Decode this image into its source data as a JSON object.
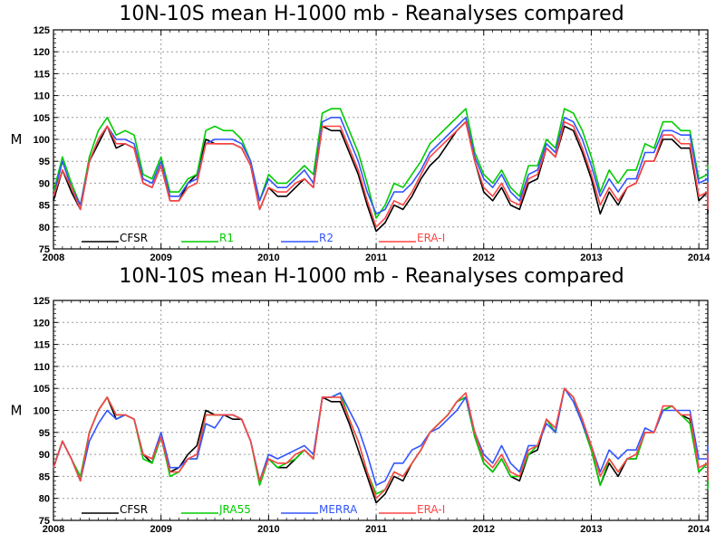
{
  "chart_data": [
    {
      "type": "line",
      "title": "10N-10S mean H-1000 mb - Reanalyses compared",
      "ylabel": "M",
      "ylim": [
        75,
        125
      ],
      "yticks": [
        75,
        80,
        85,
        90,
        95,
        100,
        105,
        110,
        115,
        120,
        125
      ],
      "xlim": [
        2008,
        2014.083
      ],
      "xticks": [
        "2008",
        "2009",
        "2010",
        "2011",
        "2012",
        "2013",
        "2014"
      ],
      "grid": true,
      "legend_position": "bottom",
      "x_start": 2008.0,
      "x_step_months": 1,
      "series": [
        {
          "name": "CFSR",
          "color": "#000000",
          "values": [
            86,
            93,
            88,
            84,
            95,
            99,
            103,
            98,
            99,
            98,
            90,
            89,
            94,
            86,
            86,
            90,
            92,
            100,
            99,
            99,
            99,
            98,
            94,
            84,
            89,
            87,
            87,
            89,
            91,
            89,
            103,
            102,
            102,
            97,
            92,
            85,
            79,
            81,
            85,
            84,
            87,
            91,
            94,
            96,
            99,
            102,
            104,
            95,
            88,
            86,
            89,
            85,
            84,
            90,
            91,
            98,
            96,
            103,
            102,
            97,
            91,
            83,
            88,
            85,
            89,
            90,
            95,
            95,
            100,
            100,
            98,
            98,
            86,
            88,
            89,
            83
          ]
        },
        {
          "name": "R1",
          "color": "#00cc00",
          "values": [
            88,
            96,
            90,
            85,
            96,
            102,
            105,
            101,
            102,
            101,
            92,
            91,
            96,
            88,
            88,
            91,
            92,
            102,
            103,
            102,
            102,
            100,
            95,
            86,
            92,
            90,
            90,
            92,
            94,
            92,
            106,
            107,
            107,
            102,
            97,
            90,
            82,
            85,
            90,
            89,
            92,
            95,
            99,
            101,
            103,
            105,
            107,
            97,
            92,
            90,
            93,
            89,
            87,
            94,
            94,
            100,
            98,
            107,
            106,
            102,
            96,
            88,
            93,
            90,
            93,
            93,
            99,
            98,
            104,
            104,
            102,
            102,
            91,
            92,
            94,
            86
          ]
        },
        {
          "name": "R2",
          "color": "#3355ff",
          "values": [
            87,
            95,
            89,
            85,
            95,
            100,
            103,
            100,
            100,
            99,
            91,
            90,
            95,
            87,
            87,
            90,
            91,
            99,
            100,
            100,
            100,
            99,
            95,
            86,
            91,
            89,
            89,
            91,
            93,
            90,
            104,
            105,
            105,
            100,
            95,
            88,
            83,
            84,
            88,
            88,
            90,
            93,
            97,
            99,
            101,
            103,
            105,
            96,
            91,
            89,
            92,
            88,
            86,
            92,
            93,
            99,
            97,
            105,
            104,
            100,
            94,
            87,
            91,
            88,
            91,
            91,
            97,
            97,
            102,
            102,
            101,
            101,
            90,
            91,
            93,
            85
          ]
        },
        {
          "name": "ERA-I",
          "color": "#ff4444",
          "values": [
            87,
            93,
            89,
            84,
            95,
            100,
            103,
            99,
            99,
            98,
            90,
            89,
            94,
            86,
            86,
            89,
            90,
            99,
            99,
            99,
            99,
            98,
            94,
            84,
            89,
            88,
            88,
            90,
            91,
            89,
            103,
            103,
            103,
            98,
            93,
            86,
            80,
            82,
            86,
            85,
            88,
            92,
            96,
            98,
            100,
            102,
            104,
            95,
            89,
            87,
            90,
            86,
            85,
            91,
            92,
            98,
            96,
            104,
            103,
            98,
            92,
            85,
            89,
            86,
            89,
            90,
            95,
            95,
            101,
            101,
            99,
            99,
            87,
            88,
            90,
            84
          ]
        }
      ]
    },
    {
      "type": "line",
      "title": "10N-10S mean H-1000 mb - Reanalyses compared",
      "ylabel": "M",
      "ylim": [
        75,
        125
      ],
      "yticks": [
        75,
        80,
        85,
        90,
        95,
        100,
        105,
        110,
        115,
        120,
        125
      ],
      "xlim": [
        2008,
        2014.083
      ],
      "xticks": [
        "2008",
        "2009",
        "2010",
        "2011",
        "2012",
        "2013",
        "2014"
      ],
      "grid": true,
      "legend_position": "bottom",
      "x_start": 2008.0,
      "x_step_months": 1,
      "series": [
        {
          "name": "CFSR",
          "color": "#000000",
          "values": [
            87,
            93,
            89,
            84,
            95,
            100,
            103,
            98,
            99,
            98,
            90,
            88,
            94,
            86,
            87,
            90,
            92,
            100,
            99,
            99,
            98,
            98,
            93,
            84,
            89,
            87,
            87,
            89,
            91,
            89,
            103,
            102,
            102,
            97,
            91,
            85,
            79,
            81,
            85,
            84,
            88,
            91,
            95,
            97,
            99,
            102,
            103,
            94,
            88,
            86,
            89,
            85,
            84,
            90,
            91,
            98,
            95,
            105,
            103,
            97,
            91,
            83,
            88,
            85,
            89,
            89,
            95,
            95,
            100,
            101,
            99,
            98,
            86,
            88,
            89,
            83
          ]
        },
        {
          "name": "JRA55",
          "color": "#00cc00",
          "values": [
            87,
            93,
            89,
            85,
            95,
            100,
            103,
            99,
            99,
            98,
            89,
            88,
            94,
            85,
            86,
            89,
            89,
            99,
            99,
            99,
            99,
            98,
            93,
            83,
            89,
            87,
            88,
            89,
            91,
            89,
            103,
            103,
            104,
            98,
            93,
            86,
            81,
            82,
            86,
            85,
            88,
            91,
            95,
            97,
            99,
            102,
            103,
            94,
            88,
            86,
            89,
            85,
            85,
            90,
            92,
            98,
            95,
            105,
            103,
            97,
            91,
            83,
            89,
            86,
            89,
            89,
            95,
            95,
            100,
            101,
            99,
            97,
            86,
            88,
            89,
            82
          ]
        },
        {
          "name": "MERRA",
          "color": "#3355ff",
          "values": [
            87,
            93,
            89,
            84,
            93,
            97,
            100,
            98,
            99,
            98,
            90,
            89,
            95,
            87,
            87,
            89,
            89,
            97,
            96,
            99,
            99,
            98,
            93,
            84,
            90,
            89,
            90,
            91,
            92,
            90,
            103,
            103,
            104,
            100,
            96,
            90,
            83,
            84,
            88,
            88,
            91,
            92,
            95,
            96,
            98,
            100,
            103,
            95,
            90,
            88,
            92,
            88,
            86,
            92,
            92,
            97,
            95,
            105,
            102,
            97,
            92,
            86,
            91,
            89,
            91,
            91,
            96,
            95,
            100,
            100,
            100,
            100,
            89,
            89,
            92,
            85
          ]
        },
        {
          "name": "ERA-I",
          "color": "#ff4444",
          "values": [
            87,
            93,
            89,
            84,
            95,
            100,
            103,
            99,
            99,
            98,
            90,
            89,
            94,
            86,
            86,
            89,
            90,
            99,
            99,
            99,
            99,
            98,
            93,
            84,
            89,
            88,
            88,
            90,
            91,
            89,
            103,
            103,
            103,
            98,
            93,
            86,
            80,
            82,
            86,
            85,
            88,
            91,
            95,
            97,
            99,
            102,
            104,
            95,
            89,
            87,
            90,
            86,
            85,
            91,
            92,
            98,
            96,
            105,
            103,
            98,
            92,
            85,
            89,
            86,
            89,
            90,
            95,
            95,
            101,
            101,
            99,
            99,
            87,
            88,
            90,
            84
          ]
        }
      ]
    }
  ]
}
